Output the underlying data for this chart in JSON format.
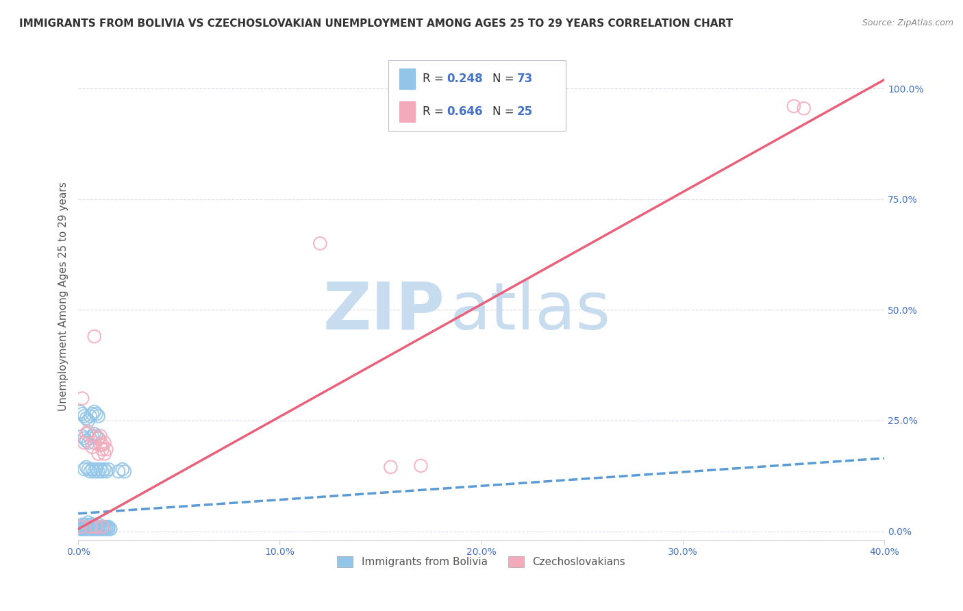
{
  "title": "IMMIGRANTS FROM BOLIVIA VS CZECHOSLOVAKIAN UNEMPLOYMENT AMONG AGES 25 TO 29 YEARS CORRELATION CHART",
  "source": "Source: ZipAtlas.com",
  "ylabel": "Unemployment Among Ages 25 to 29 years",
  "xlim": [
    0.0,
    0.4
  ],
  "ylim": [
    -0.02,
    1.08
  ],
  "xticks": [
    0.0,
    0.1,
    0.2,
    0.3,
    0.4
  ],
  "xtick_labels": [
    "0.0%",
    "10.0%",
    "20.0%",
    "30.0%",
    "40.0%"
  ],
  "yticks_right": [
    0.0,
    0.25,
    0.5,
    0.75,
    1.0
  ],
  "ytick_labels_right": [
    "0.0%",
    "25.0%",
    "50.0%",
    "75.0%",
    "100.0%"
  ],
  "legend_r_blue": "R = 0.248",
  "legend_n_blue": "N = 73",
  "legend_r_pink": "R = 0.646",
  "legend_n_pink": "N = 25",
  "label_blue": "Immigrants from Bolivia",
  "label_pink": "Czechoslovakians",
  "blue_color": "#92C5E8",
  "pink_color": "#F4AABB",
  "trend_blue_color": "#5B9BD5",
  "trend_pink_color": "#E8607A",
  "watermark_zip": "ZIP",
  "watermark_atlas": "atlas",
  "watermark_color": "#C8DCF0",
  "blue_scatter_x": [
    0.001,
    0.001,
    0.002,
    0.002,
    0.003,
    0.003,
    0.003,
    0.004,
    0.004,
    0.004,
    0.005,
    0.005,
    0.005,
    0.006,
    0.006,
    0.006,
    0.007,
    0.007,
    0.007,
    0.008,
    0.008,
    0.008,
    0.009,
    0.009,
    0.01,
    0.01,
    0.01,
    0.011,
    0.011,
    0.012,
    0.012,
    0.013,
    0.013,
    0.014,
    0.014,
    0.015,
    0.015,
    0.016,
    0.001,
    0.002,
    0.003,
    0.004,
    0.005,
    0.006,
    0.007,
    0.008,
    0.009,
    0.01,
    0.002,
    0.003,
    0.004,
    0.005,
    0.006,
    0.007,
    0.008,
    0.009,
    0.01,
    0.003,
    0.004,
    0.005,
    0.006,
    0.007,
    0.008,
    0.009,
    0.01,
    0.011,
    0.012,
    0.013,
    0.014,
    0.015,
    0.02,
    0.022,
    0.023
  ],
  "blue_scatter_y": [
    0.005,
    0.01,
    0.005,
    0.015,
    0.005,
    0.01,
    0.015,
    0.005,
    0.01,
    0.015,
    0.005,
    0.01,
    0.02,
    0.005,
    0.01,
    0.015,
    0.005,
    0.01,
    0.015,
    0.005,
    0.01,
    0.015,
    0.005,
    0.01,
    0.005,
    0.01,
    0.015,
    0.005,
    0.01,
    0.005,
    0.01,
    0.005,
    0.01,
    0.005,
    0.01,
    0.005,
    0.01,
    0.005,
    0.27,
    0.265,
    0.26,
    0.255,
    0.25,
    0.26,
    0.265,
    0.27,
    0.265,
    0.26,
    0.215,
    0.21,
    0.205,
    0.2,
    0.21,
    0.215,
    0.22,
    0.215,
    0.21,
    0.14,
    0.145,
    0.14,
    0.135,
    0.14,
    0.135,
    0.14,
    0.135,
    0.14,
    0.135,
    0.14,
    0.135,
    0.14,
    0.135,
    0.14,
    0.135
  ],
  "pink_scatter_x": [
    0.001,
    0.002,
    0.003,
    0.004,
    0.005,
    0.006,
    0.007,
    0.008,
    0.009,
    0.01,
    0.011,
    0.012,
    0.013,
    0.008,
    0.012,
    0.011,
    0.01,
    0.012,
    0.013,
    0.014,
    0.12,
    0.155,
    0.17,
    0.36,
    0.355
  ],
  "pink_scatter_y": [
    0.01,
    0.3,
    0.2,
    0.22,
    0.225,
    0.01,
    0.19,
    0.2,
    0.01,
    0.21,
    0.215,
    0.01,
    0.2,
    0.44,
    0.195,
    0.195,
    0.175,
    0.185,
    0.175,
    0.185,
    0.65,
    0.145,
    0.148,
    0.955,
    0.96
  ],
  "blue_trend_x": [
    0.0,
    0.4
  ],
  "blue_trend_y": [
    0.04,
    0.165
  ],
  "pink_trend_x": [
    0.0,
    0.4
  ],
  "pink_trend_y": [
    0.005,
    1.02
  ],
  "background_color": "#ffffff",
  "grid_color": "#DDDDE8",
  "title_fontsize": 11,
  "axis_label_fontsize": 11,
  "tick_fontsize": 10,
  "legend_fontsize": 12,
  "legend_text_color": "#333333",
  "legend_num_color": "#4472C4"
}
